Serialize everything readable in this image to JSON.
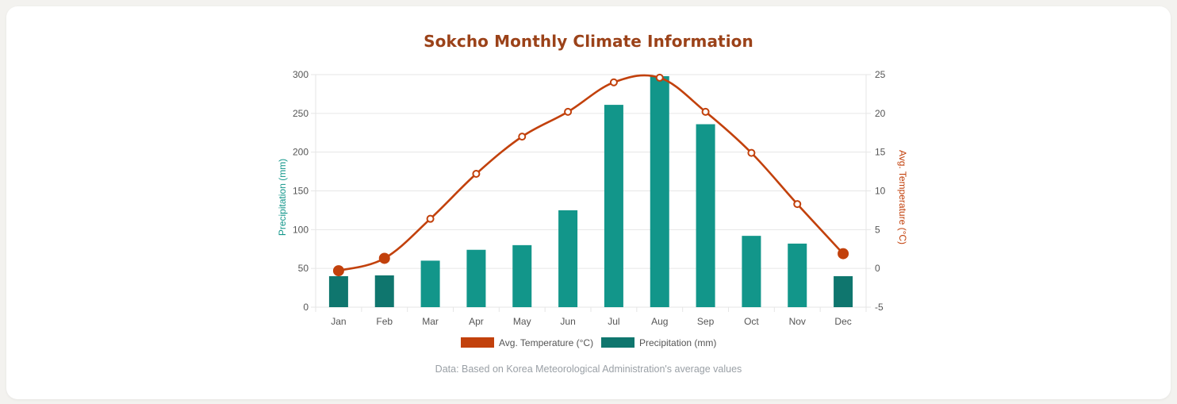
{
  "page": {
    "title": "Sokcho Monthly Climate Information",
    "footnote": "Data: Based on Korea Meteorological Administration's average values"
  },
  "colors": {
    "bar": "#12968a",
    "bar_dark": "#0f766e",
    "line": "#c2410c",
    "title": "#9b4219",
    "grid": "#e6e6e6",
    "tick_text": "#555555"
  },
  "chart_data": {
    "type": "bar",
    "categories": [
      "Jan",
      "Feb",
      "Mar",
      "Apr",
      "May",
      "Jun",
      "Jul",
      "Aug",
      "Sep",
      "Oct",
      "Nov",
      "Dec"
    ],
    "series": [
      {
        "name": "Avg. Temperature (°C)",
        "type": "line",
        "axis": "right",
        "values": [
          -0.3,
          1.3,
          6.4,
          12.2,
          17.0,
          20.2,
          24.0,
          24.6,
          20.2,
          14.9,
          8.3,
          1.9
        ]
      },
      {
        "name": "Precipitation (mm)",
        "type": "bar",
        "axis": "left",
        "values": [
          40,
          41,
          60,
          74,
          80,
          125,
          261,
          298,
          236,
          92,
          82,
          40
        ]
      }
    ],
    "y_left": {
      "label": "Precipitation (mm)",
      "min": 0,
      "max": 300,
      "ticks": [
        "0",
        "50",
        "100",
        "150",
        "200",
        "250",
        "300"
      ]
    },
    "y_right": {
      "label": "Avg. Temperature (°C)",
      "min": -5,
      "max": 25,
      "ticks": [
        "-5",
        "0",
        "5",
        "10",
        "15",
        "20",
        "25"
      ]
    },
    "highlighted_months": [
      "Jan",
      "Feb",
      "Dec"
    ],
    "grid": true,
    "legend": "bottom"
  }
}
